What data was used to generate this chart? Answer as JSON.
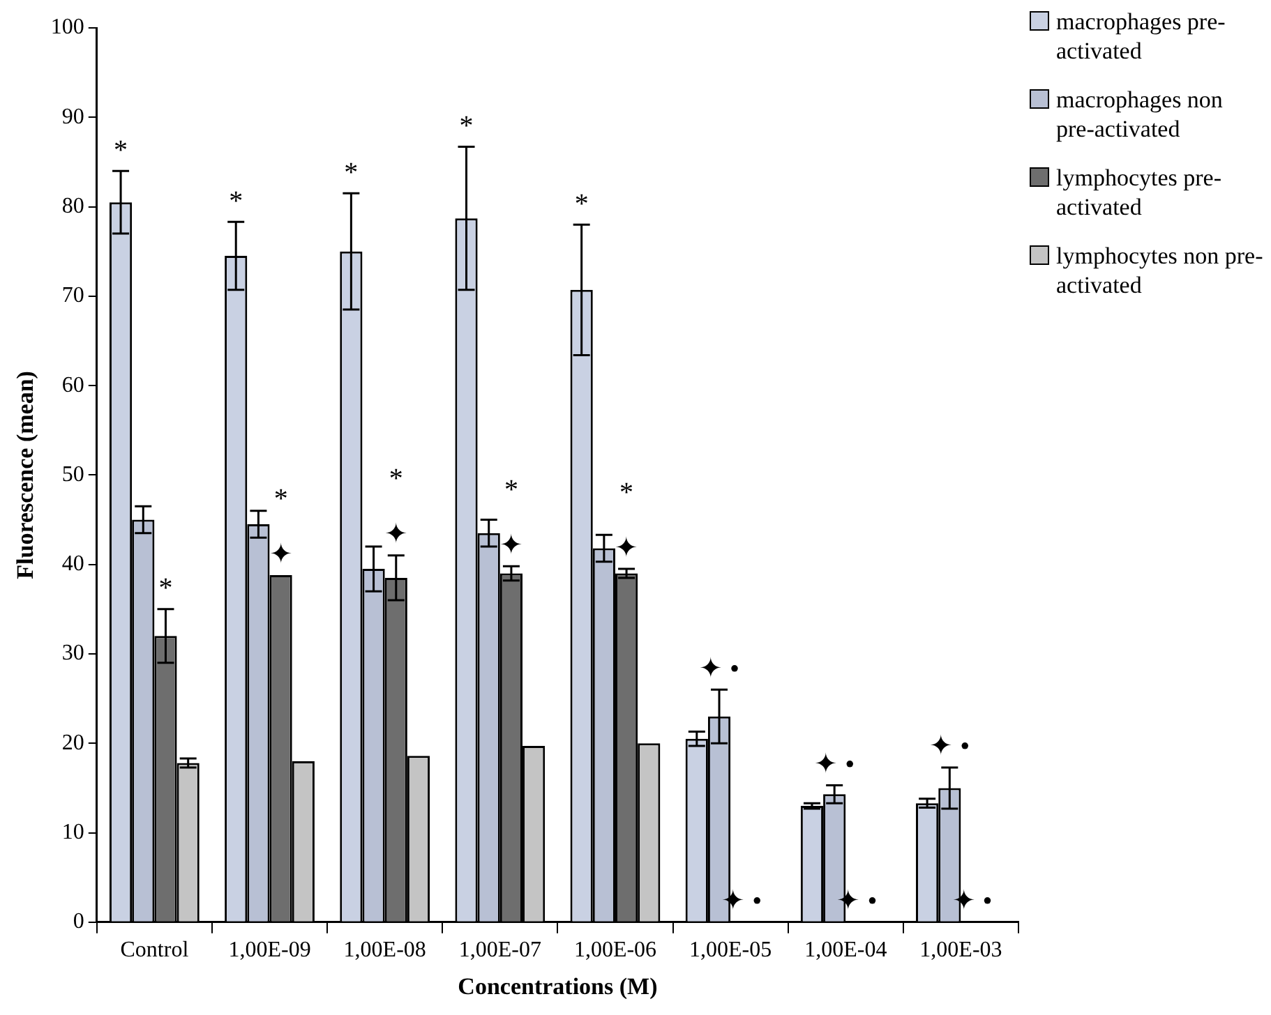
{
  "chart_data": {
    "type": "bar",
    "xlabel": "Concentrations (M)",
    "ylabel": "Fluorescence (mean)",
    "categories": [
      "Control",
      "1,00E-09",
      "1,00E-08",
      "1,00E-07",
      "1,00E-06",
      "1,00E-05",
      "1,00E-04",
      "1,00E-03"
    ],
    "series": [
      {
        "name": "macrophages pre-activated",
        "color": "#c9d1e3",
        "values": [
          80.5,
          74.5,
          75,
          78.7,
          70.7,
          20.5,
          13,
          13.3
        ],
        "errors": [
          3.5,
          3.8,
          6.5,
          8,
          7.3,
          0.8,
          0.3,
          0.5
        ]
      },
      {
        "name": "macrophages non pre-activated",
        "color": "#b8c0d4",
        "values": [
          45,
          44.5,
          39.5,
          43.5,
          41.8,
          23,
          14.3,
          15
        ],
        "errors": [
          1.5,
          1.5,
          2.5,
          1.5,
          1.5,
          3,
          1,
          2.3
        ]
      },
      {
        "name": "lymphocytes pre-activated",
        "color": "#6e6e6e",
        "values": [
          32,
          38.8,
          38.5,
          39,
          39,
          0,
          0,
          0
        ],
        "errors": [
          3,
          null,
          2.5,
          0.8,
          0.5,
          null,
          null,
          null
        ]
      },
      {
        "name": "lymphocytes non pre- activated",
        "color": "#c4c4c4",
        "values": [
          17.8,
          18,
          18.6,
          19.7,
          20,
          0,
          0,
          0
        ],
        "errors": [
          0.5,
          null,
          null,
          null,
          null,
          null,
          null,
          null
        ]
      }
    ],
    "ylim": [
      0,
      100
    ],
    "yticks": [
      0,
      10,
      20,
      30,
      40,
      50,
      60,
      70,
      80,
      90,
      100
    ],
    "grid": false,
    "legend": "top right",
    "annotations": [
      {
        "text": "✦ •",
        "x": "1,00E-05",
        "y": 23
      },
      {
        "text": "✦ •",
        "x": "1,00E-05",
        "y": 0
      },
      {
        "text": "✦ •",
        "x": "1,00E-04",
        "y": 14.3
      },
      {
        "text": "✦ •",
        "x": "1,00E-04",
        "y": 0
      },
      {
        "text": "✦ •",
        "x": "1,00E-03",
        "y": 15
      },
      {
        "text": "✦ •",
        "x": "1,00E-03",
        "y": 0
      },
      "*",
      {
        "text": "*",
        "x": "Control",
        "y": 32
      },
      "*",
      {
        "text": "✦",
        "x": "1,00E-09",
        "y": 38.8
      },
      "*",
      "*",
      {
        "text": "✦",
        "x": "1,00E-08",
        "y": 38.5
      },
      "*",
      "*",
      {
        "text": "✦",
        "x": "1,00E-07",
        "y": 39
      },
      "*",
      "*",
      {
        "text": "✦",
        "x": "1,00E-06",
        "y": 39
      },
      "*"
    ]
  }
}
